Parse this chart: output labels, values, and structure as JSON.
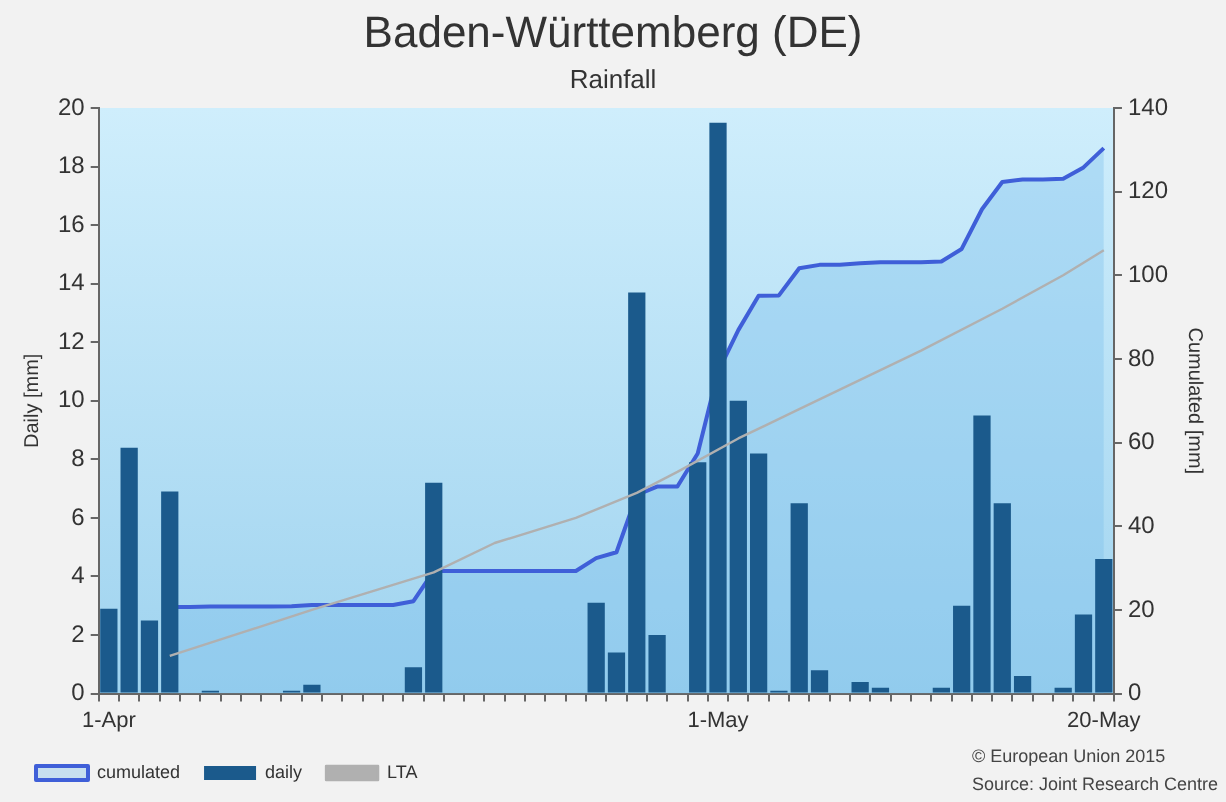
{
  "chart_data": {
    "type": "bar",
    "title": "Baden-Württemberg (DE)",
    "subtitle": "Rainfall",
    "ylabel": "Daily [mm]",
    "y2label": "Cumulated [mm]",
    "categories": [
      "1-Apr",
      null,
      null,
      null,
      null,
      null,
      null,
      null,
      null,
      null,
      null,
      null,
      null,
      null,
      null,
      null,
      null,
      null,
      null,
      null,
      null,
      null,
      null,
      null,
      null,
      null,
      null,
      null,
      null,
      null,
      "1-May",
      null,
      null,
      null,
      null,
      null,
      null,
      null,
      null,
      null,
      null,
      null,
      null,
      null,
      null,
      null,
      null,
      null,
      null,
      "20-May"
    ],
    "series": [
      {
        "name": "cumulated",
        "type": "area",
        "axis": "y2",
        "color": "#3f5fd8",
        "values": [
          null,
          null,
          null,
          20.7,
          20.7,
          20.8,
          20.8,
          20.8,
          20.8,
          20.9,
          21.2,
          21.2,
          21.2,
          21.2,
          21.2,
          22.1,
          29.3,
          29.3,
          29.3,
          29.3,
          29.3,
          29.3,
          29.3,
          29.3,
          32.4,
          33.8,
          47.5,
          49.5,
          49.5,
          57.4,
          76.9,
          86.9,
          95.1,
          95.2,
          101.7,
          102.5,
          102.5,
          102.9,
          103.1,
          103.1,
          103.1,
          103.3,
          106.3,
          115.8,
          122.3,
          122.9,
          122.9,
          123.1,
          125.8,
          130.4
        ]
      },
      {
        "name": "daily",
        "color": "#1b5a8c",
        "values": [
          2.9,
          8.4,
          2.5,
          6.9,
          0,
          0.1,
          0,
          0,
          0,
          0.1,
          0.3,
          0,
          0,
          0,
          0,
          0.9,
          7.2,
          0,
          0,
          0,
          0,
          0,
          0,
          0,
          3.1,
          1.4,
          13.7,
          2.0,
          0,
          7.9,
          19.5,
          10.0,
          8.2,
          0.1,
          6.5,
          0.8,
          0,
          0.4,
          0.2,
          0,
          0,
          0.2,
          3.0,
          9.5,
          6.5,
          0.6,
          0,
          0.2,
          2.7,
          4.6
        ]
      },
      {
        "name": "LTA",
        "type": "line",
        "axis": "y2",
        "color": "#b0b0b0",
        "values": [
          null,
          null,
          null,
          9,
          null,
          null,
          null,
          null,
          null,
          null,
          20,
          null,
          null,
          null,
          null,
          null,
          29,
          null,
          null,
          36,
          null,
          null,
          null,
          42,
          null,
          null,
          48,
          null,
          53,
          null,
          null,
          61,
          null,
          null,
          68,
          null,
          null,
          75,
          null,
          null,
          82,
          null,
          null,
          null,
          92,
          null,
          null,
          100,
          null,
          106
        ]
      }
    ],
    "ylim": [
      0,
      20
    ],
    "yticks": [
      0,
      2,
      4,
      6,
      8,
      10,
      12,
      14,
      16,
      18,
      20
    ],
    "y2lim": [
      0,
      140
    ],
    "y2ticks": [
      0,
      20,
      40,
      60,
      80,
      100,
      120,
      140
    ],
    "grid": false,
    "legend": "bottom left",
    "marker": "none",
    "annotations": [
      "© European Union 2015",
      "Source: Joint Research Centre"
    ]
  }
}
